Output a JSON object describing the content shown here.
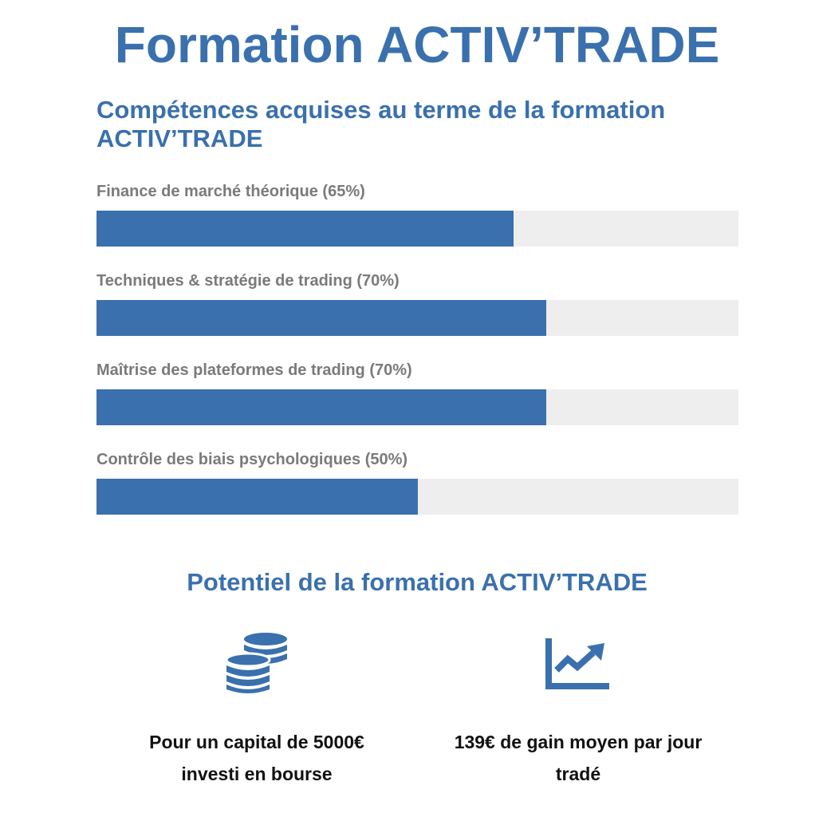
{
  "header": {
    "title": "Formation ACTIV’TRADE"
  },
  "skills_section": {
    "title": "Compétences acquises au terme de la formation ACTIV’TRADE",
    "items": [
      {
        "label": "Finance de marché théorique (65%)",
        "percent": 65
      },
      {
        "label": "Techniques & stratégie de trading (70%)",
        "percent": 70
      },
      {
        "label": "Maîtrise des plateformes de trading (70%)",
        "percent": 70
      },
      {
        "label": "Contrôle des biais psychologiques (50%)",
        "percent": 50
      }
    ]
  },
  "potential_section": {
    "title": "Potentiel de la formation ACTIV’TRADE",
    "stats": [
      {
        "icon": "coins-icon",
        "text": "Pour un capital de 5000€ investi en bourse"
      },
      {
        "icon": "chart-line-icon",
        "text": "139€ de gain moyen par jour tradé"
      }
    ]
  },
  "colors": {
    "accent": "#3a70ad",
    "track": "#eeeeee",
    "label": "#7a7a7a",
    "stat_text": "#111111"
  }
}
